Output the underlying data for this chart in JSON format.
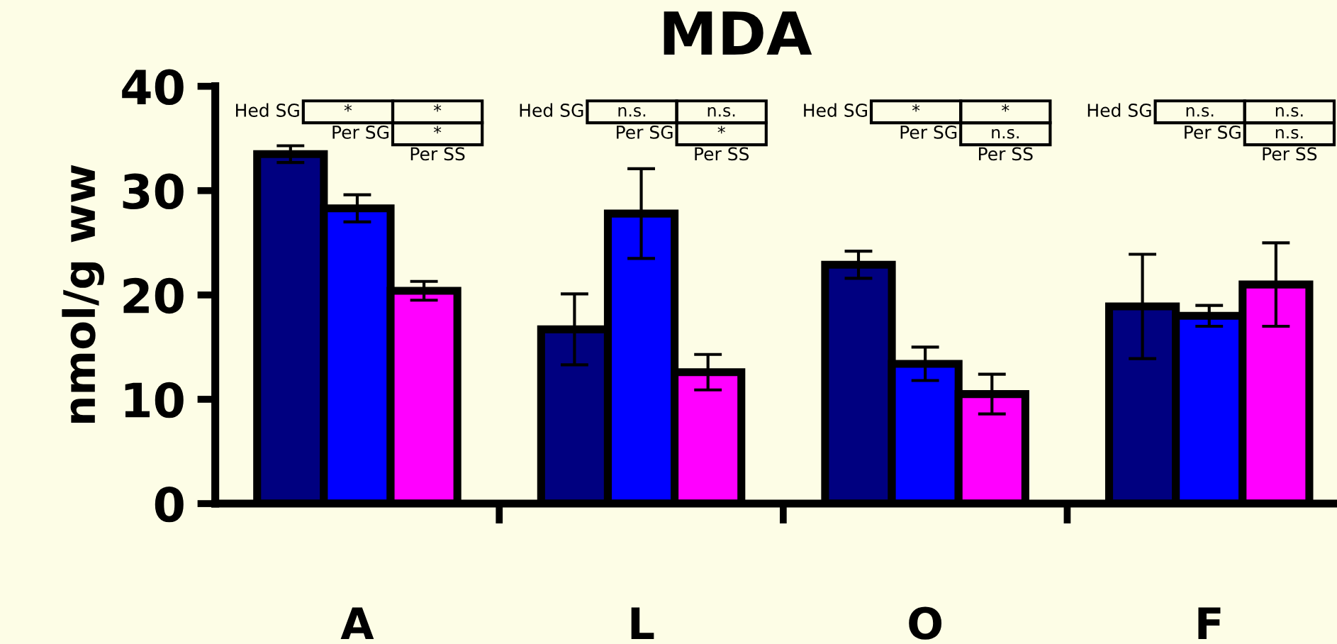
{
  "chart_data": {
    "type": "bar",
    "title": "MDA",
    "ylabel": "nmol/g ww",
    "categories": [
      "A",
      "L",
      "O",
      "F"
    ],
    "series": [
      {
        "color": "#000080",
        "values": [
          33.5,
          16.7,
          22.9,
          18.9
        ],
        "errors": [
          0.8,
          3.4,
          1.3,
          5.0
        ]
      },
      {
        "color": "#0000ff",
        "values": [
          28.3,
          27.8,
          13.4,
          18.0
        ],
        "errors": [
          1.3,
          4.3,
          1.6,
          1.0
        ]
      },
      {
        "color": "#ff00ff",
        "values": [
          20.4,
          12.6,
          10.5,
          21.0
        ],
        "errors": [
          0.9,
          1.7,
          1.9,
          4.0
        ]
      }
    ],
    "ylim": [
      0,
      40
    ],
    "yticks": [
      0,
      10,
      20,
      30,
      40
    ],
    "grid": false,
    "legend": false,
    "annotations": [
      "Hed SG",
      "*",
      "*",
      "Per SG",
      "*",
      "Per SS",
      "Hed SG",
      "n.s.",
      "n.s.",
      "Per SG",
      "*",
      "Per SS",
      "Hed SG",
      "*",
      "*",
      "Per SG",
      "n.s.",
      "Per SS",
      "Hed SG",
      "n.s.",
      "n.s.",
      "Per SG",
      "n.s.",
      "Per SS"
    ]
  }
}
